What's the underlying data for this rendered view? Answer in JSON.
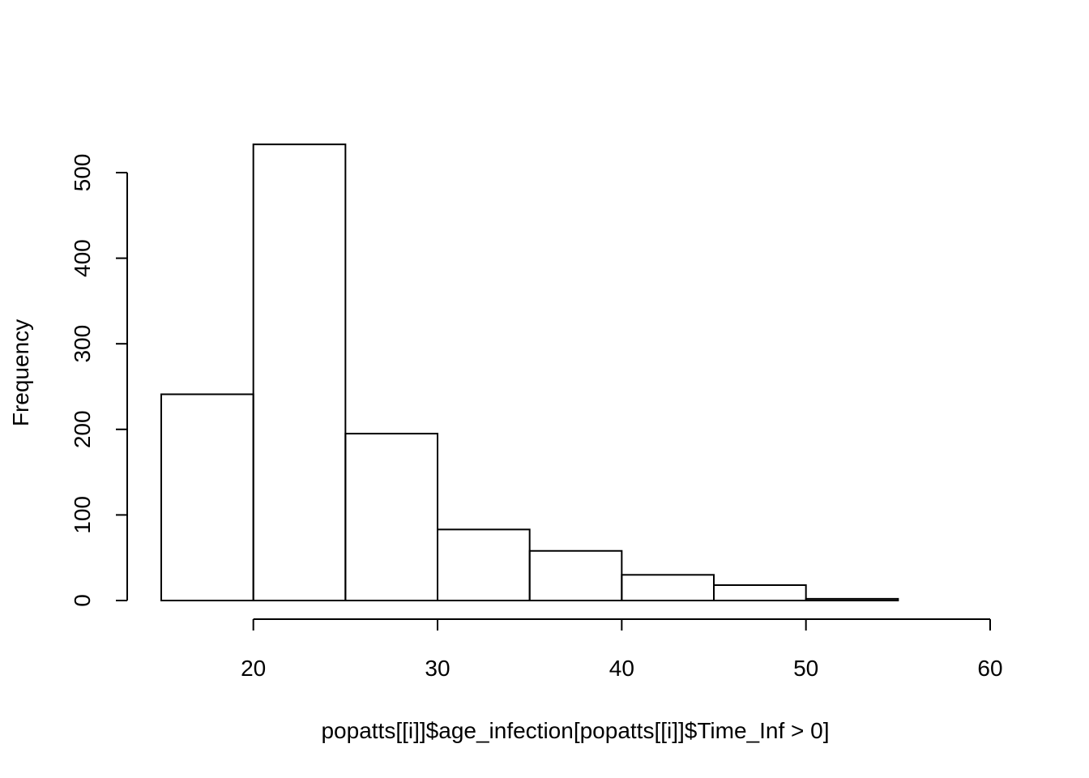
{
  "chart_data": {
    "type": "bar",
    "title": "",
    "xlabel": "popatts[[i]]$age_infection[popatts[[i]]$Time_Inf > 0]",
    "ylabel": "Frequency",
    "bins": [
      {
        "x0": 15,
        "x1": 20,
        "count": 241
      },
      {
        "x0": 20,
        "x1": 25,
        "count": 533
      },
      {
        "x0": 25,
        "x1": 30,
        "count": 195
      },
      {
        "x0": 30,
        "x1": 35,
        "count": 83
      },
      {
        "x0": 35,
        "x1": 40,
        "count": 58
      },
      {
        "x0": 40,
        "x1": 45,
        "count": 30
      },
      {
        "x0": 45,
        "x1": 50,
        "count": 18
      },
      {
        "x0": 50,
        "x1": 55,
        "count": 2
      },
      {
        "x0": 55,
        "x1": 60,
        "count": 0
      }
    ],
    "xlim": [
      15,
      60
    ],
    "ylim": [
      0,
      533
    ],
    "x_ticks": [
      "20",
      "30",
      "40",
      "50",
      "60"
    ],
    "y_ticks": [
      "0",
      "100",
      "200",
      "300",
      "400",
      "500"
    ],
    "grid": false
  }
}
